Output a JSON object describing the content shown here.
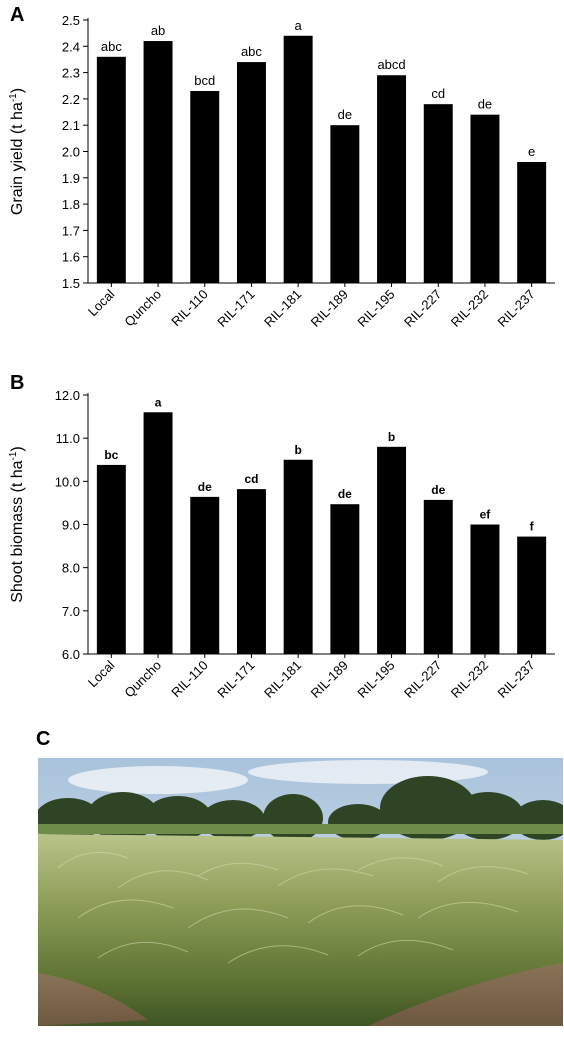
{
  "panels": {
    "a": "A",
    "b": "B",
    "c": "C"
  },
  "chart_data": [
    {
      "type": "bar",
      "categories": [
        "Local",
        "Quncho",
        "RIL-110",
        "RIL-171",
        "RIL-181",
        "RIL-189",
        "RIL-195",
        "RIL-227",
        "RIL-232",
        "RIL-237"
      ],
      "values": [
        2.36,
        2.42,
        2.23,
        2.34,
        2.44,
        2.1,
        2.29,
        2.18,
        2.14,
        1.96
      ],
      "labels": [
        "abc",
        "ab",
        "bcd",
        "abc",
        "a",
        "de",
        "abcd",
        "cd",
        "de",
        "e"
      ],
      "ylabel": "Grain yield (t ha",
      "ylabel_sup": "-1",
      "ylabel_close": ")",
      "ylim": [
        1.5,
        2.5
      ],
      "yticks": [
        "1.5",
        "1.6",
        "1.7",
        "1.8",
        "1.9",
        "2.0",
        "2.1",
        "2.2",
        "2.3",
        "2.4",
        "2.5"
      ],
      "grid": false,
      "bar_color": "#000000"
    },
    {
      "type": "bar",
      "categories": [
        "Local",
        "Quncho",
        "RIL-110",
        "RIL-171",
        "RIL-181",
        "RIL-189",
        "RIL-195",
        "RIL-227",
        "RIL-232",
        "RIL-237"
      ],
      "values": [
        10.38,
        11.6,
        9.64,
        9.82,
        10.5,
        9.47,
        10.8,
        9.57,
        9.0,
        8.72
      ],
      "labels": [
        "bc",
        "a",
        "de",
        "cd",
        "b",
        "de",
        "b",
        "de",
        "ef",
        "f"
      ],
      "ylabel": "Shoot biomass (t ha",
      "ylabel_sup": "-1",
      "ylabel_close": ")",
      "ylim": [
        6.0,
        12.0
      ],
      "yticks": [
        "6.0",
        "7.0",
        "8.0",
        "9.0",
        "10.0",
        "11.0",
        "12.0"
      ],
      "grid": false,
      "bar_color": "#000000"
    }
  ]
}
